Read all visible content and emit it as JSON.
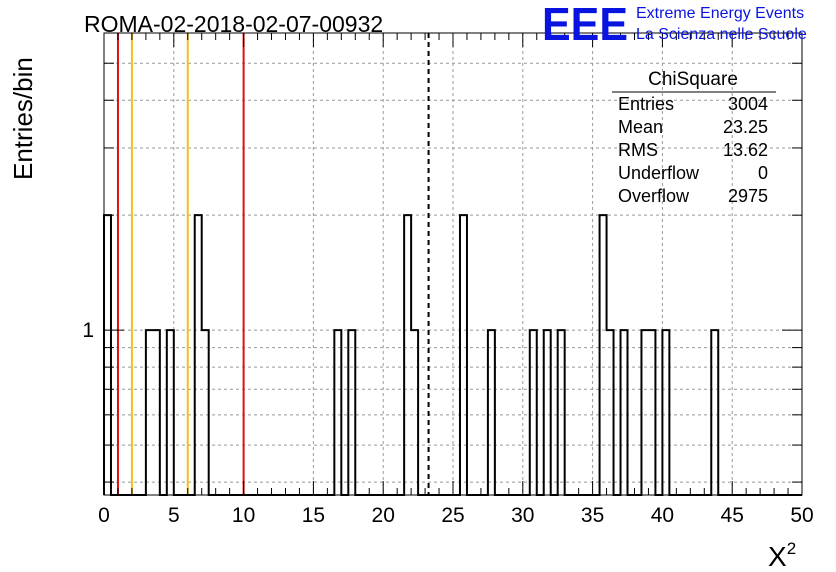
{
  "chart_data": {
    "type": "histogram",
    "title": "ROMA-02-2018-02-07-00932",
    "xlabel": "X",
    "xlabel_superscript": "2",
    "ylabel": "Entries/bin",
    "xlim": [
      0,
      50
    ],
    "y_scale": "log",
    "ylim": [
      0.37,
      6
    ],
    "x_ticks": [
      0,
      5,
      10,
      15,
      20,
      25,
      30,
      35,
      40,
      45,
      50
    ],
    "y_tick_labels": [
      {
        "value": 1,
        "label": "1"
      }
    ],
    "grid": true,
    "bin_width": 0.5,
    "bins": [
      {
        "x": 0.0,
        "count": 2
      },
      {
        "x": 0.5,
        "count": 0
      },
      {
        "x": 1.0,
        "count": 0
      },
      {
        "x": 1.5,
        "count": 0
      },
      {
        "x": 2.0,
        "count": 0
      },
      {
        "x": 2.5,
        "count": 0
      },
      {
        "x": 3.0,
        "count": 1
      },
      {
        "x": 3.5,
        "count": 1
      },
      {
        "x": 4.0,
        "count": 0
      },
      {
        "x": 4.5,
        "count": 1
      },
      {
        "x": 5.0,
        "count": 0
      },
      {
        "x": 5.5,
        "count": 0
      },
      {
        "x": 6.0,
        "count": 0
      },
      {
        "x": 6.5,
        "count": 2
      },
      {
        "x": 7.0,
        "count": 1
      },
      {
        "x": 16.5,
        "count": 1
      },
      {
        "x": 17.5,
        "count": 1
      },
      {
        "x": 21.5,
        "count": 2
      },
      {
        "x": 22.0,
        "count": 1
      },
      {
        "x": 25.5,
        "count": 2
      },
      {
        "x": 27.5,
        "count": 1
      },
      {
        "x": 30.5,
        "count": 1
      },
      {
        "x": 31.5,
        "count": 1
      },
      {
        "x": 32.5,
        "count": 1
      },
      {
        "x": 35.5,
        "count": 2
      },
      {
        "x": 36.0,
        "count": 1
      },
      {
        "x": 37.0,
        "count": 1
      },
      {
        "x": 38.5,
        "count": 1
      },
      {
        "x": 39.0,
        "count": 1
      },
      {
        "x": 40.0,
        "count": 1
      },
      {
        "x": 43.5,
        "count": 1
      }
    ],
    "reference_lines": [
      {
        "x": 1.0,
        "color": "#dd1111",
        "style": "solid"
      },
      {
        "x": 2.0,
        "color": "#f0c020",
        "style": "solid"
      },
      {
        "x": 6.0,
        "color": "#f0c020",
        "style": "solid"
      },
      {
        "x": 10.0,
        "color": "#dd1111",
        "style": "solid"
      },
      {
        "x": 23.25,
        "color": "#000000",
        "style": "dashed"
      }
    ],
    "stats_box": {
      "title": "ChiSquare",
      "rows": [
        {
          "label": "Entries",
          "value": "3004"
        },
        {
          "label": "Mean",
          "value": "23.25"
        },
        {
          "label": "RMS",
          "value": "13.62"
        },
        {
          "label": "Underflow",
          "value": "0"
        },
        {
          "label": "Overflow",
          "value": "2975"
        }
      ]
    }
  },
  "logo": {
    "mark": "EEE",
    "line1": "Extreme Energy Events",
    "line2": "La Scienza nelle Scuole",
    "color": "#0a14e0"
  }
}
